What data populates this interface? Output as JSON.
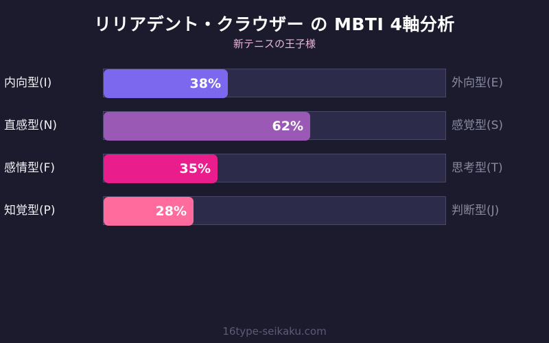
{
  "header": {
    "title": "リリアデント・クラウザー の MBTI 4軸分析",
    "subtitle": "新テニスの王子様"
  },
  "rows": [
    {
      "left": "内向型(I)",
      "right": "外向型(E)",
      "value": 38,
      "pct": "38%",
      "color": "#7b68ee"
    },
    {
      "left": "直感型(N)",
      "right": "感覚型(S)",
      "value": 62,
      "pct": "62%",
      "color": "#9b59b6"
    },
    {
      "left": "感情型(F)",
      "right": "思考型(T)",
      "value": 35,
      "pct": "35%",
      "color": "#e91e8c"
    },
    {
      "left": "知覚型(P)",
      "right": "判断型(J)",
      "value": 28,
      "pct": "28%",
      "color": "#ff6b9d"
    }
  ],
  "footer": "16type-seikaku.com",
  "chart_data": {
    "type": "bar",
    "orientation": "horizontal",
    "title": "リリアデント・クラウザー の MBTI 4軸分析",
    "subtitle": "新テニスの王子様",
    "categories": [
      "内向型(I) / 外向型(E)",
      "直感型(N) / 感覚型(S)",
      "感情型(F) / 思考型(T)",
      "知覚型(P) / 判断型(J)"
    ],
    "left_labels": [
      "内向型(I)",
      "直感型(N)",
      "感情型(F)",
      "知覚型(P)"
    ],
    "right_labels": [
      "外向型(E)",
      "感覚型(S)",
      "思考型(T)",
      "判断型(J)"
    ],
    "values": [
      38,
      62,
      35,
      28
    ],
    "colors": [
      "#7b68ee",
      "#9b59b6",
      "#e91e8c",
      "#ff6b9d"
    ],
    "xlim": [
      0,
      100
    ],
    "unit": "%",
    "grid": false,
    "legend": "none"
  }
}
